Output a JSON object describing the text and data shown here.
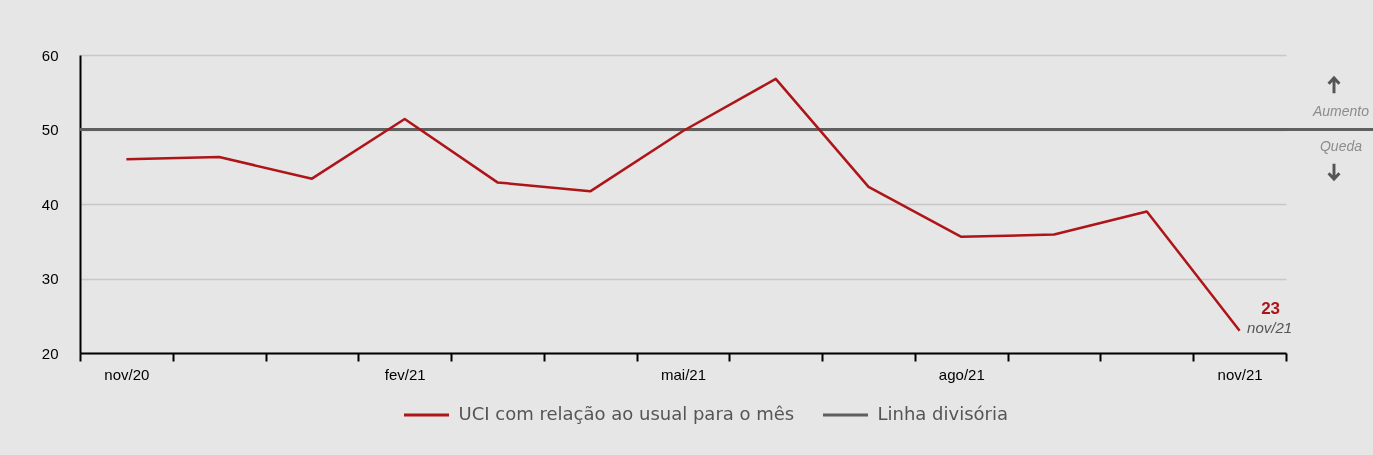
{
  "chart_data": {
    "type": "line",
    "categories": [
      "nov/20",
      null,
      null,
      "fev/21",
      null,
      null,
      "mai/21",
      null,
      null,
      "ago/21",
      null,
      null,
      "nov/21"
    ],
    "series": [
      {
        "name": "UCI com relação ao usual para o mês",
        "color": "#ad1519",
        "values": [
          46.0,
          46.3,
          43.4,
          51.4,
          42.9,
          41.7,
          49.8,
          56.8,
          42.3,
          35.6,
          35.9,
          39.0,
          23
        ],
        "value_labels": [
          null,
          null,
          null,
          null,
          null,
          null,
          null,
          null,
          null,
          null,
          null,
          null,
          "23"
        ]
      }
    ],
    "ylim": [
      20,
      60
    ],
    "yticks": [
      20,
      30,
      40,
      50,
      60
    ],
    "grid": "y",
    "legend": "bottom",
    "ref_lines": [
      {
        "axis": "y",
        "value": 50,
        "label": "Linha divisória",
        "color": "#5f5f5f"
      }
    ],
    "annotations": [
      {
        "text": "Aumento",
        "y": 50
      },
      {
        "text": "Queda",
        "y": 50
      },
      {
        "text": "nov/21",
        "x": "nov/21",
        "y": 23
      }
    ]
  }
}
